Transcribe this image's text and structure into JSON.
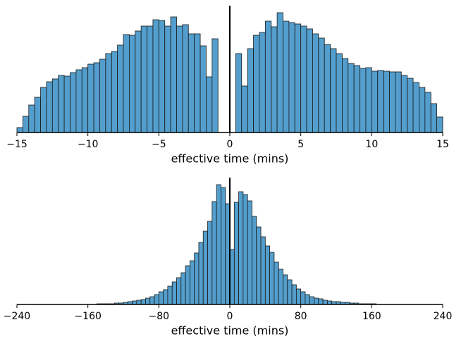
{
  "chart_data": [
    {
      "type": "histogram",
      "x_label": "effective time (mins)",
      "color": "#539ecd",
      "edgecolor": "#1a1a1a",
      "bins": [
        -15,
        -14.583,
        -14.167,
        -13.75,
        -13.333,
        -12.917,
        -12.5,
        -12.083,
        -11.667,
        -11.25,
        -10.833,
        -10.417,
        -10,
        -9.583,
        -9.167,
        -8.75,
        -8.333,
        -7.917,
        -7.5,
        -7.083,
        -6.667,
        -6.25,
        -5.833,
        -5.417,
        -5,
        -4.583,
        -4.167,
        -3.75,
        -3.333,
        -2.917,
        -2.5,
        -2.083,
        -1.667,
        -1.25,
        -0.833,
        -0.417,
        0,
        0.417,
        0.833,
        1.25,
        1.667,
        2.083,
        2.5,
        2.917,
        3.333,
        3.75,
        4.167,
        4.583,
        5,
        5.417,
        5.833,
        6.25,
        6.667,
        7.083,
        7.5,
        7.917,
        8.333,
        8.75,
        9.167,
        9.583,
        10,
        10.417,
        10.833,
        11.25,
        11.667,
        12.083,
        12.5,
        12.917,
        13.333,
        13.75,
        14.167,
        14.583,
        15
      ],
      "values": [
        7,
        23,
        39,
        50,
        64,
        72,
        76,
        81,
        80,
        85,
        89,
        92,
        97,
        99,
        104,
        112,
        115,
        124,
        139,
        138,
        144,
        151,
        151,
        160,
        159,
        151,
        164,
        151,
        153,
        140,
        140,
        123,
        79,
        133,
        0,
        0,
        0,
        112,
        66,
        119,
        138,
        142,
        158,
        150,
        170,
        158,
        156,
        154,
        151,
        147,
        140,
        134,
        125,
        119,
        112,
        105,
        98,
        95,
        91,
        92,
        87,
        88,
        87,
        86,
        86,
        81,
        77,
        71,
        64,
        57,
        41,
        22
      ],
      "xlim": [
        -15,
        15
      ],
      "ylim": [
        0,
        180
      ],
      "xticks": [
        {
          "value": -15,
          "label": "−15"
        },
        {
          "value": -10,
          "label": "−10"
        },
        {
          "value": -5,
          "label": "−5"
        },
        0,
        5,
        10,
        15
      ]
    },
    {
      "type": "histogram",
      "x_label": "effective time (mins)",
      "color": "#539ecd",
      "edgecolor": "#1a1a1a",
      "bins": [
        -240,
        -235,
        -230,
        -225,
        -220,
        -215,
        -210,
        -205,
        -200,
        -195,
        -190,
        -185,
        -180,
        -175,
        -170,
        -165,
        -160,
        -155,
        -150,
        -145,
        -140,
        -135,
        -130,
        -125,
        -120,
        -115,
        -110,
        -105,
        -100,
        -95,
        -90,
        -85,
        -80,
        -75,
        -70,
        -65,
        -60,
        -55,
        -50,
        -45,
        -40,
        -35,
        -30,
        -25,
        -20,
        -15,
        -10,
        -5,
        0,
        5,
        10,
        15,
        20,
        25,
        30,
        35,
        40,
        45,
        50,
        55,
        60,
        65,
        70,
        75,
        80,
        85,
        90,
        95,
        100,
        105,
        110,
        115,
        120,
        125,
        130,
        135,
        140,
        145,
        150,
        155,
        160,
        165,
        170,
        175,
        180,
        185,
        190,
        195,
        200,
        205,
        210,
        215,
        220,
        225,
        230,
        235,
        240
      ],
      "values": [
        0,
        0,
        0,
        0,
        0,
        0,
        0,
        0,
        0,
        0,
        0,
        0,
        0,
        0,
        0,
        0,
        0,
        0,
        1,
        1,
        1,
        1,
        2,
        2,
        3,
        4,
        5,
        6,
        7,
        9,
        11,
        14,
        18,
        21,
        26,
        32,
        38,
        45,
        55,
        62,
        73,
        88,
        104,
        118,
        146,
        170,
        166,
        143,
        78,
        145,
        160,
        156,
        147,
        125,
        110,
        96,
        83,
        74,
        60,
        50,
        42,
        35,
        28,
        22,
        18,
        14,
        11,
        9,
        8,
        6,
        5,
        4,
        4,
        3,
        3,
        2,
        2,
        1,
        1,
        1,
        1,
        0,
        0,
        0,
        0,
        0,
        0,
        0,
        0,
        0,
        0,
        0,
        0,
        0,
        0,
        0
      ],
      "xlim": [
        -240,
        240
      ],
      "ylim": [
        0,
        180
      ],
      "xticks": [
        {
          "value": -240,
          "label": "−240"
        },
        {
          "value": -160,
          "label": "−160"
        },
        {
          "value": -80,
          "label": "−80"
        },
        0,
        80,
        160,
        240
      ]
    }
  ]
}
